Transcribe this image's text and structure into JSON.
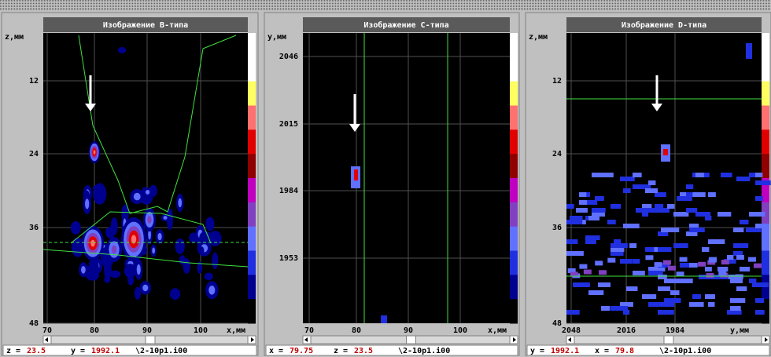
{
  "panels": [
    {
      "title": "Изображение B-типа",
      "y_axis_label": "z,мм",
      "y_ticks": [
        "12",
        "24",
        "36",
        "48"
      ],
      "x_ticks": [
        "70",
        "80",
        "90",
        "100"
      ],
      "x_axis_label": "x,мм",
      "status": [
        {
          "name": "z =",
          "value": "23.5"
        },
        {
          "name": "y =",
          "value": "1992.1"
        }
      ],
      "file": "\\2-10p1.i00"
    },
    {
      "title": "Изображение C-типа",
      "y_axis_label": "y,мм",
      "y_ticks": [
        "2046",
        "2015",
        "1984",
        "1953"
      ],
      "x_ticks": [
        "70",
        "80",
        "90",
        "100"
      ],
      "x_axis_label": "x,мм",
      "status": [
        {
          "name": "x =",
          "value": "79.75"
        },
        {
          "name": "z =",
          "value": "23.5"
        }
      ],
      "file": "\\2-10p1.i00"
    },
    {
      "title": "Изображение D-типа",
      "y_axis_label": "z,мм",
      "y_ticks": [
        "12",
        "24",
        "36",
        "48"
      ],
      "x_ticks": [
        "2048",
        "2016",
        "1984"
      ],
      "x_axis_label": "y,мм",
      "status": [
        {
          "name": "y =",
          "value": "1992.1"
        },
        {
          "name": "x =",
          "value": "79.8"
        }
      ],
      "file": "\\2-10p1.i00"
    }
  ]
}
